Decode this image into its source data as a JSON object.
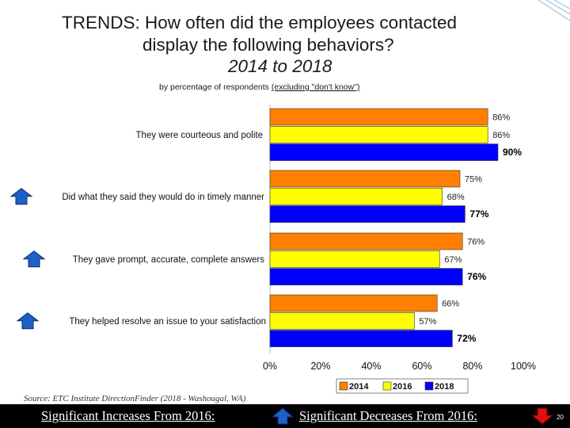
{
  "header": {
    "title_line1": "TRENDS:  How often did the employees contacted",
    "title_line2": "display the following behaviors?",
    "title_line3": "2014 to 2018",
    "subtitle_prefix": "by percentage of respondents ",
    "subtitle_underlined": "(excluding \"don't know\")"
  },
  "source": "Source:  ETC Institute DirectionFinder (2018 - Washougal, WA)",
  "footer": {
    "increase_label": "Significant Increases From 2016:",
    "decrease_label": "Significant Decreases From 2016:",
    "page_number": "20"
  },
  "colors": {
    "2014": "#ff8000",
    "2016": "#ffff00",
    "2018": "#0000ff",
    "increase_arrow": "#1f5fc8",
    "decrease_arrow": "#dd1111"
  },
  "chart_data": {
    "type": "bar",
    "orientation": "horizontal",
    "title": "How often did the employees contacted display the following behaviors? 2014 to 2018",
    "xlabel": "by percentage of respondents (excluding \"don't know\")",
    "xlim": [
      0,
      100
    ],
    "ticks": [
      "0%",
      "20%",
      "40%",
      "60%",
      "80%",
      "100%"
    ],
    "tick_values": [
      0,
      20,
      40,
      60,
      80,
      100
    ],
    "categories": [
      "They were courteous and polite",
      "Did what they said they would do in timely manner",
      "They gave prompt, accurate, complete answers",
      "They helped resolve an issue to your satisfaction"
    ],
    "significant_increase": [
      false,
      true,
      true,
      true
    ],
    "series": [
      {
        "name": "2014",
        "values": [
          86,
          75,
          76,
          66
        ]
      },
      {
        "name": "2016",
        "values": [
          86,
          68,
          67,
          57
        ]
      },
      {
        "name": "2018",
        "values": [
          90,
          77,
          76,
          72
        ]
      }
    ],
    "value_labels": [
      [
        "86%",
        "75%",
        "76%",
        "66%"
      ],
      [
        "86%",
        "68%",
        "67%",
        "57%"
      ],
      [
        "90%",
        "77%",
        "76%",
        "72%"
      ]
    ],
    "legend": [
      "2014",
      "2016",
      "2018"
    ],
    "legend_position": "bottom"
  }
}
